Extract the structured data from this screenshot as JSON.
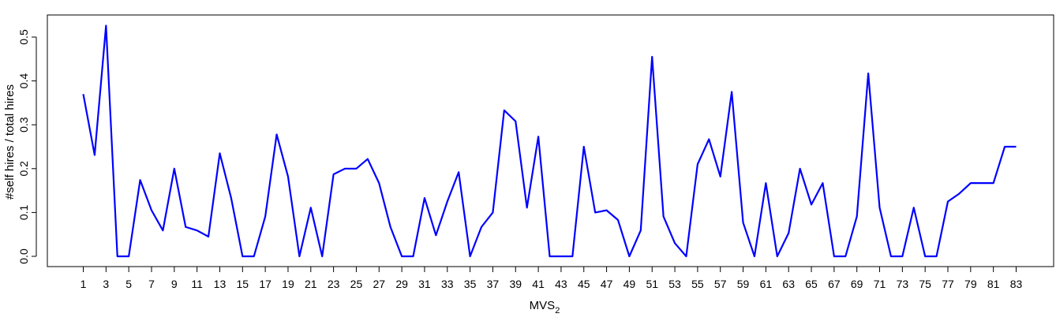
{
  "chart_data": {
    "type": "line",
    "xlabel": "MVS",
    "xlabel_sub": "2",
    "ylabel": "#self hires / total hires",
    "xlim": [
      1,
      83
    ],
    "ylim": [
      0,
      0.5
    ],
    "x_ticks": [
      1,
      3,
      5,
      7,
      9,
      11,
      13,
      15,
      17,
      19,
      21,
      23,
      25,
      27,
      29,
      31,
      33,
      35,
      37,
      39,
      41,
      43,
      45,
      47,
      49,
      51,
      53,
      55,
      57,
      59,
      61,
      63,
      65,
      67,
      69,
      71,
      73,
      75,
      77,
      79,
      81,
      83
    ],
    "y_ticks": [
      "0.0",
      "0.1",
      "0.2",
      "0.3",
      "0.4",
      "0.5"
    ],
    "grid": false,
    "line_color": "#0000ff",
    "series": [
      {
        "x": [
          1,
          2,
          3,
          4,
          5,
          6,
          7,
          8,
          9,
          10,
          11,
          12,
          13,
          14,
          15,
          16,
          17,
          18,
          19,
          20,
          21,
          22,
          23,
          24,
          25,
          26,
          27,
          28,
          29,
          30,
          31,
          32,
          33,
          34,
          35,
          36,
          37,
          38,
          39,
          40,
          41,
          42,
          43,
          44,
          45,
          46,
          47,
          48,
          49,
          50,
          51,
          52,
          53,
          54,
          55,
          56,
          57,
          58,
          59,
          60,
          61,
          62,
          63,
          64,
          65,
          66,
          67,
          68,
          69,
          70,
          71,
          72,
          73,
          74,
          75,
          76,
          77,
          78,
          79,
          80,
          81,
          82,
          83
        ],
        "values": [
          0.37,
          0.231,
          0.526,
          0,
          0,
          0.174,
          0.105,
          0.059,
          0.2,
          0.067,
          0.059,
          0.045,
          0.235,
          0.133,
          0,
          0,
          0.091,
          0.278,
          0.182,
          0,
          0.111,
          0,
          0.187,
          0.2,
          0.2,
          0.222,
          0.167,
          0.067,
          0,
          0,
          0.133,
          0.048,
          0.125,
          0.192,
          0,
          0.067,
          0.1,
          0.333,
          0.308,
          0.111,
          0.273,
          0,
          0,
          0,
          0.25,
          0.1,
          0.105,
          0.083,
          0,
          0.059,
          0.455,
          0.091,
          0.03,
          0,
          0.21,
          0.267,
          0.182,
          0.375,
          0.077,
          0,
          0.167,
          0,
          0.053,
          0.2,
          0.118,
          0.167,
          0,
          0,
          0.091,
          0.417,
          0.111,
          0,
          0,
          0.111,
          0,
          0,
          0.125,
          0.143,
          0.167,
          0.167,
          0.167,
          0.25,
          0.25
        ]
      }
    ]
  }
}
